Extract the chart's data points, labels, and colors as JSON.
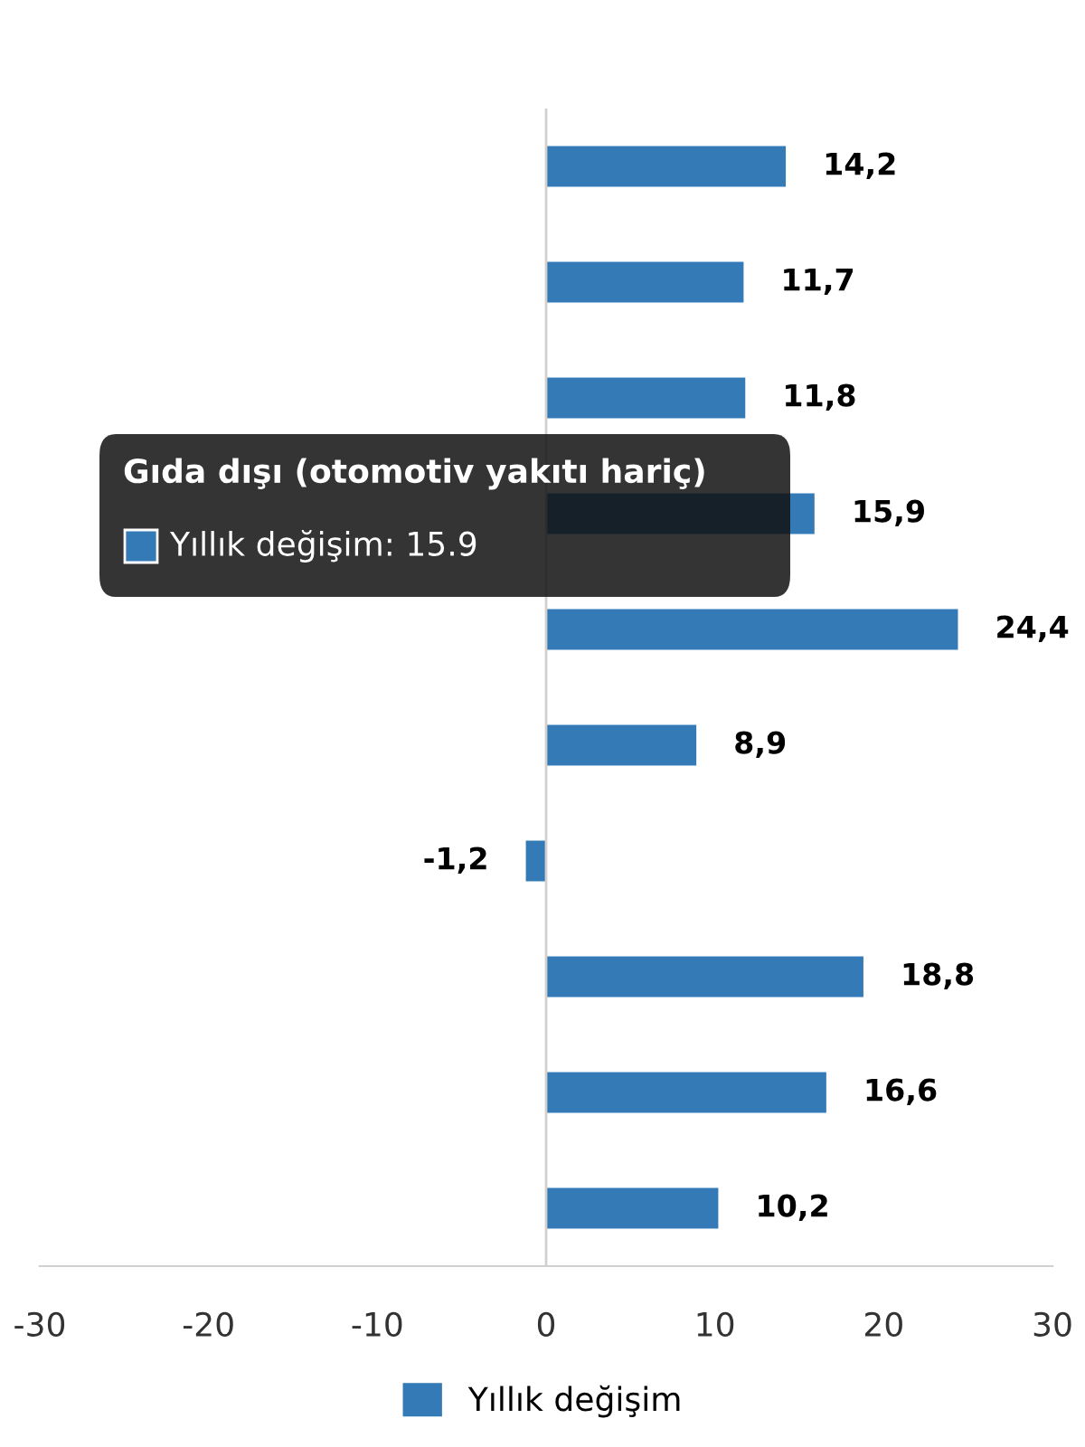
{
  "chart_data": {
    "type": "bar",
    "orientation": "horizontal",
    "categories": [
      null,
      null,
      null,
      null,
      null,
      null,
      null,
      null,
      null,
      null
    ],
    "series": [
      {
        "name": "Yıllık değişim",
        "color": "#337ab7",
        "values": [
          14.2,
          11.7,
          11.8,
          15.9,
          24.4,
          8.9,
          -1.2,
          18.8,
          16.6,
          10.2
        ],
        "value_labels": [
          "14,2",
          "11,7",
          "11,8",
          "15,9",
          "24,4",
          "8,9",
          "-1,2",
          "18,8",
          "16,6",
          "10,2"
        ]
      }
    ],
    "xlim": [
      -30,
      30
    ],
    "xticks": [
      -30,
      -20,
      -10,
      0,
      10,
      20,
      30
    ],
    "grid": false,
    "legend": "bottom",
    "ref_lines": [
      {
        "axis": "x",
        "value": 0,
        "color": "#d0d0d0"
      }
    ],
    "annotations": [
      "Gıda dışı (otomotiv yakıtı hariç)",
      "Yıllık değişim: 15.9"
    ]
  }
}
